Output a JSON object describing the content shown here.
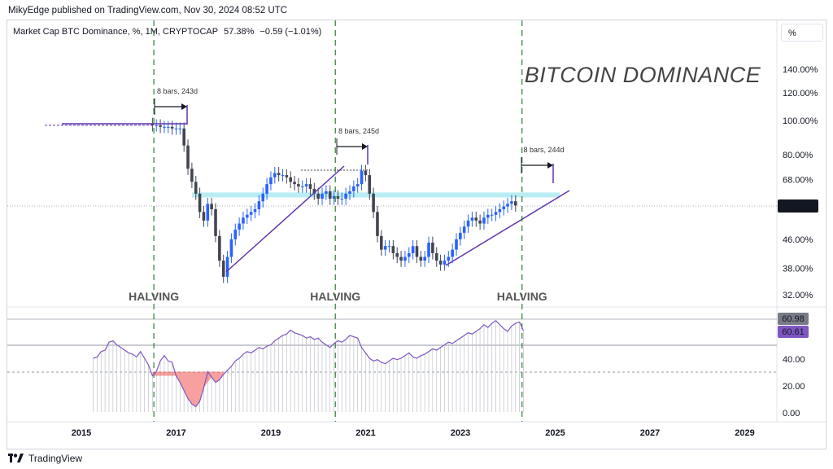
{
  "published": "MikyEdge published on TradingView.com, Nov 30, 2024 08:52 UTC",
  "header": {
    "symbol_desc": "Market Cap BTC Dominance, %, 1M, CRYPTOCAP",
    "last": "57.38%",
    "change": "−0.59 (−1.01%)",
    "scale_button": "%"
  },
  "footer": {
    "brand": "TradingView"
  },
  "colors": {
    "up": "#2962ff",
    "down": "#434651",
    "rsi_line": "#7e57c2",
    "halving_line": "#2e7d32",
    "zone": "#b2ebf2",
    "trendline": "#5e35b1"
  },
  "chart_data": {
    "type": "candlestick",
    "title": "BITCOIN DOMINANCE",
    "y_scale": "log",
    "y_ticks": [
      "140.00%",
      "120.00%",
      "100.00%",
      "80.00%",
      "68.00%",
      "57.38%",
      "46.00%",
      "38.00%",
      "32.00%"
    ],
    "last_price_label": "57.38%",
    "x_ticks": [
      "2015",
      "2017",
      "2019",
      "2021",
      "2023",
      "2025",
      "2027",
      "2029"
    ],
    "halving_labels": [
      "HALVING",
      "HALVING",
      "HALVING"
    ],
    "halving_dates": [
      2016.53,
      2020.36,
      2024.3
    ],
    "bar_annotations": [
      "8 bars, 243d",
      "8 bars, 245d",
      "8 bars, 244d"
    ],
    "monthly_close": {
      "start": 2016.5,
      "step": 0.0833,
      "values": [
        97,
        97,
        96,
        96,
        96,
        95,
        95,
        95,
        85,
        73,
        67,
        62,
        55,
        52,
        58,
        56,
        47,
        40,
        36,
        41,
        46,
        49,
        51,
        53,
        54,
        55,
        56,
        59,
        62,
        66,
        69,
        71,
        70,
        70,
        69,
        67,
        66,
        65,
        65,
        66,
        64,
        62,
        60,
        62,
        63,
        60,
        61,
        60,
        60,
        62,
        63,
        65,
        66,
        72,
        70,
        62,
        55,
        47,
        43,
        44,
        44,
        42,
        41,
        40,
        41,
        42,
        44,
        41,
        40,
        41,
        45,
        42,
        40,
        39,
        40,
        41,
        43,
        46,
        48,
        50,
        52,
        53,
        52,
        51,
        53,
        54,
        54,
        55,
        56,
        57,
        58,
        59,
        57.38
      ]
    },
    "resistance_zone": [
      60.5,
      62.5
    ],
    "rsi": {
      "ticks": [
        "60.98",
        "60.61",
        "40.00",
        "20.00",
        "0.00"
      ],
      "badge_upper": "60.98",
      "badge_lower": "60.61",
      "levels": [
        70,
        30
      ],
      "start": 2015.25,
      "step": 0.0833,
      "values": [
        40,
        41,
        45,
        46,
        52,
        53,
        50,
        48,
        46,
        44,
        43,
        41,
        45,
        40,
        35,
        27,
        30,
        38,
        42,
        38,
        37,
        27,
        22,
        16,
        10,
        6,
        4,
        8,
        18,
        30,
        26,
        22,
        24,
        28,
        31,
        34,
        38,
        40,
        43,
        45,
        44,
        46,
        48,
        47,
        49,
        50,
        53,
        55,
        57,
        58,
        61,
        59,
        58,
        57,
        55,
        56,
        54,
        55,
        52,
        50,
        48,
        51,
        53,
        52,
        54,
        57,
        56,
        55,
        48,
        44,
        40,
        38,
        39,
        37,
        36,
        38,
        40,
        39,
        40,
        42,
        44,
        41,
        40,
        42,
        43,
        45,
        47,
        46,
        48,
        50,
        52,
        51,
        53,
        55,
        57,
        59,
        58,
        60,
        62,
        65,
        63,
        66,
        68,
        65,
        62,
        60,
        64,
        66,
        67,
        60.61
      ]
    }
  }
}
